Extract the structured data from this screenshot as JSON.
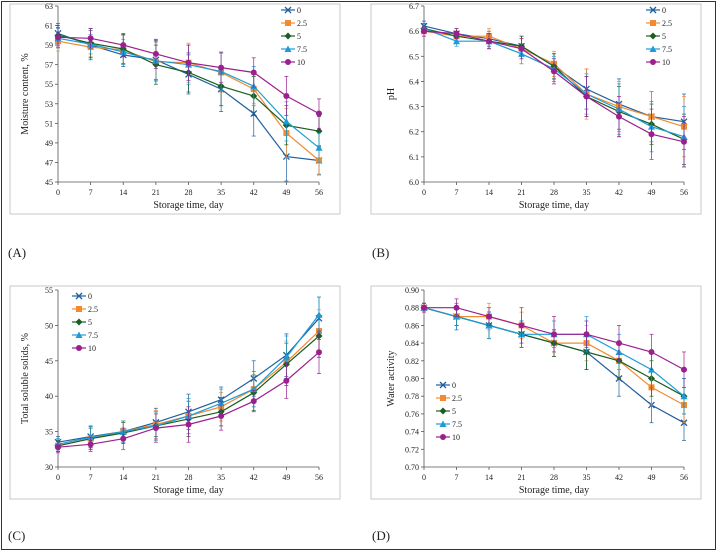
{
  "colors": {
    "0": "#1f5f9f",
    "2.5": "#f28a30",
    "5": "#1a5e20",
    "7.5": "#1e9bd7",
    "10": "#9b1f8f"
  },
  "chart_data": [
    {
      "type": "line",
      "panel_label": "(A)",
      "xlabel": "Storage time, day",
      "ylabel": "Moisture content, %",
      "x": [
        0,
        7,
        14,
        21,
        28,
        35,
        42,
        49,
        56
      ],
      "ylim": [
        45,
        63
      ],
      "yticks": [
        45,
        47,
        49,
        51,
        53,
        55,
        57,
        59,
        61,
        63
      ],
      "ytick_labels": [
        "45",
        "47",
        "49",
        "51",
        "53",
        "55",
        "57",
        "59",
        "61",
        "63"
      ],
      "legend_position": "top-right",
      "series": [
        {
          "name": "0",
          "values": [
            60.2,
            59.0,
            58.0,
            57.5,
            56.0,
            54.5,
            52.0,
            47.6,
            47.2
          ],
          "err": [
            1.0,
            1.5,
            1.2,
            2.0,
            2.0,
            2.3,
            2.3,
            2.5,
            1.4
          ]
        },
        {
          "name": "2.5",
          "values": [
            59.4,
            58.8,
            58.5,
            57.3,
            57.2,
            56.2,
            54.5,
            50.0,
            47.2
          ],
          "err": [
            1.0,
            1.0,
            1.5,
            2.0,
            2.0,
            2.0,
            1.5,
            2.5,
            1.5
          ]
        },
        {
          "name": "5",
          "values": [
            60.0,
            59.2,
            58.6,
            57.0,
            56.2,
            54.8,
            53.8,
            50.8,
            50.2
          ],
          "err": [
            1.0,
            1.5,
            1.5,
            2.0,
            2.0,
            2.0,
            2.0,
            2.0,
            1.5
          ]
        },
        {
          "name": "7.5",
          "values": [
            59.7,
            59.1,
            58.3,
            57.4,
            57.0,
            56.3,
            54.8,
            51.2,
            48.5
          ],
          "err": [
            1.0,
            1.0,
            1.3,
            2.0,
            2.0,
            2.0,
            2.0,
            2.0,
            1.5
          ]
        },
        {
          "name": "10",
          "values": [
            59.8,
            59.7,
            59.0,
            58.1,
            57.2,
            56.7,
            56.2,
            53.8,
            52.0
          ],
          "err": [
            1.0,
            1.0,
            1.2,
            1.5,
            1.8,
            1.5,
            1.5,
            2.0,
            1.5
          ]
        }
      ]
    },
    {
      "type": "line",
      "panel_label": "(B)",
      "xlabel": "Storage time, day",
      "ylabel": "pH",
      "x": [
        0,
        7,
        14,
        21,
        28,
        35,
        42,
        49,
        56
      ],
      "ylim": [
        6.0,
        6.7
      ],
      "yticks": [
        6.0,
        6.1,
        6.2,
        6.3,
        6.4,
        6.5,
        6.6,
        6.7
      ],
      "ytick_labels": [
        "6.0",
        "6.1",
        "6.2",
        "6.3",
        "6.4",
        "6.5",
        "6.6",
        "6.7"
      ],
      "legend_position": "top-right",
      "series": [
        {
          "name": "0",
          "values": [
            6.62,
            6.59,
            6.57,
            6.54,
            6.46,
            6.37,
            6.31,
            6.26,
            6.24
          ],
          "err": [
            0.02,
            0.02,
            0.03,
            0.04,
            0.05,
            0.08,
            0.1,
            0.1,
            0.11
          ]
        },
        {
          "name": "2.5",
          "values": [
            6.6,
            6.58,
            6.58,
            6.53,
            6.47,
            6.35,
            6.3,
            6.26,
            6.22
          ],
          "err": [
            0.02,
            0.03,
            0.03,
            0.04,
            0.05,
            0.1,
            0.1,
            0.1,
            0.12
          ]
        },
        {
          "name": "5",
          "values": [
            6.61,
            6.58,
            6.56,
            6.54,
            6.46,
            6.34,
            6.28,
            6.23,
            6.17
          ],
          "err": [
            0.02,
            0.02,
            0.03,
            0.04,
            0.05,
            0.08,
            0.1,
            0.08,
            0.1
          ]
        },
        {
          "name": "7.5",
          "values": [
            6.61,
            6.56,
            6.56,
            6.51,
            6.45,
            6.35,
            6.29,
            6.22,
            6.18
          ],
          "err": [
            0.02,
            0.02,
            0.03,
            0.04,
            0.05,
            0.08,
            0.1,
            0.1,
            0.12
          ]
        },
        {
          "name": "10",
          "values": [
            6.6,
            6.59,
            6.56,
            6.53,
            6.44,
            6.34,
            6.26,
            6.19,
            6.16
          ],
          "err": [
            0.02,
            0.02,
            0.03,
            0.04,
            0.05,
            0.08,
            0.08,
            0.1,
            0.1
          ]
        }
      ]
    },
    {
      "type": "line",
      "panel_label": "(C)",
      "xlabel": "Storage time, day",
      "ylabel": "Total soluble solids, %",
      "x": [
        0,
        7,
        14,
        21,
        28,
        35,
        42,
        49,
        56
      ],
      "ylim": [
        30,
        55
      ],
      "yticks": [
        30,
        35,
        40,
        45,
        50,
        55
      ],
      "ytick_labels": [
        "30",
        "35",
        "40",
        "45",
        "50",
        "55"
      ],
      "legend_position": "top-left",
      "series": [
        {
          "name": "0",
          "values": [
            33.5,
            34.3,
            35.0,
            36.3,
            37.8,
            39.5,
            42.5,
            45.8,
            51.0
          ],
          "err": [
            0.8,
            1.5,
            1.5,
            2.0,
            2.5,
            1.8,
            2.5,
            3.0,
            3.0
          ]
        },
        {
          "name": "2.5",
          "values": [
            33.0,
            34.0,
            35.0,
            36.0,
            37.2,
            38.5,
            41.0,
            44.8,
            49.2
          ],
          "err": [
            0.8,
            1.5,
            1.5,
            2.0,
            2.5,
            2.0,
            2.5,
            3.0,
            3.0
          ]
        },
        {
          "name": "5",
          "values": [
            33.0,
            34.0,
            34.8,
            35.8,
            36.8,
            37.8,
            40.5,
            44.5,
            48.5
          ],
          "err": [
            0.8,
            1.5,
            1.5,
            2.0,
            2.5,
            2.0,
            2.5,
            3.0,
            3.0
          ]
        },
        {
          "name": "7.5",
          "values": [
            33.2,
            34.2,
            35.0,
            35.8,
            37.2,
            39.0,
            41.0,
            45.5,
            51.5
          ],
          "err": [
            0.8,
            1.5,
            1.5,
            2.0,
            2.5,
            2.0,
            2.5,
            3.0,
            2.5
          ]
        },
        {
          "name": "10",
          "values": [
            32.8,
            33.2,
            34.0,
            35.5,
            36.0,
            37.2,
            39.3,
            42.2,
            46.2
          ],
          "err": [
            0.8,
            1.0,
            1.5,
            2.0,
            2.5,
            2.0,
            1.5,
            2.5,
            3.0
          ]
        }
      ]
    },
    {
      "type": "line",
      "panel_label": "(D)",
      "xlabel": "Storage time, day",
      "ylabel": "Water activity",
      "x": [
        0,
        7,
        14,
        21,
        28,
        35,
        42,
        49,
        56
      ],
      "ylim": [
        0.7,
        0.9
      ],
      "yticks": [
        0.7,
        0.72,
        0.74,
        0.76,
        0.78,
        0.8,
        0.82,
        0.84,
        0.86,
        0.88,
        0.9
      ],
      "ytick_labels": [
        "0.70",
        "0.72",
        "0.74",
        "0.76",
        "0.78",
        "0.80",
        "0.82",
        "0.84",
        "0.86",
        "0.88",
        "0.90"
      ],
      "legend_position": "bottom-left",
      "series": [
        {
          "name": "0",
          "values": [
            0.88,
            0.87,
            0.86,
            0.85,
            0.84,
            0.83,
            0.8,
            0.77,
            0.75
          ],
          "err": [
            0.005,
            0.015,
            0.015,
            0.015,
            0.015,
            0.02,
            0.02,
            0.02,
            0.02
          ]
        },
        {
          "name": "2.5",
          "values": [
            0.88,
            0.87,
            0.87,
            0.86,
            0.84,
            0.84,
            0.82,
            0.79,
            0.77
          ],
          "err": [
            0.005,
            0.01,
            0.015,
            0.015,
            0.015,
            0.02,
            0.02,
            0.02,
            0.02
          ]
        },
        {
          "name": "5",
          "values": [
            0.88,
            0.87,
            0.86,
            0.85,
            0.84,
            0.83,
            0.82,
            0.8,
            0.78
          ],
          "err": [
            0.005,
            0.01,
            0.015,
            0.015,
            0.015,
            0.02,
            0.02,
            0.02,
            0.02
          ]
        },
        {
          "name": "7.5",
          "values": [
            0.88,
            0.87,
            0.86,
            0.85,
            0.85,
            0.85,
            0.83,
            0.81,
            0.78
          ],
          "err": [
            0.005,
            0.015,
            0.015,
            0.015,
            0.015,
            0.02,
            0.02,
            0.02,
            0.02
          ]
        },
        {
          "name": "10",
          "values": [
            0.88,
            0.88,
            0.87,
            0.86,
            0.85,
            0.85,
            0.84,
            0.83,
            0.81
          ],
          "err": [
            0.005,
            0.01,
            0.01,
            0.02,
            0.02,
            0.015,
            0.02,
            0.02,
            0.02
          ]
        }
      ]
    }
  ]
}
